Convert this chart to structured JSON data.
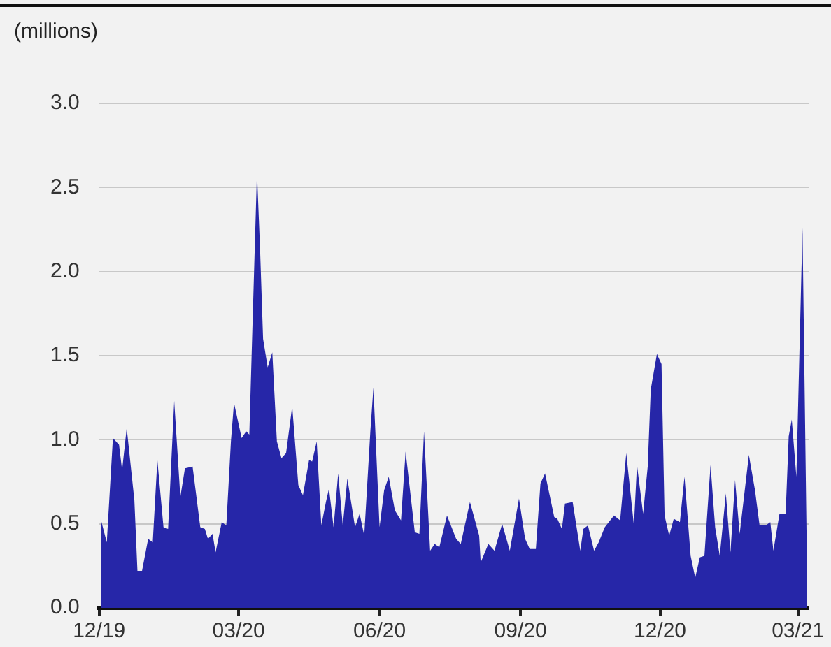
{
  "chart_data": {
    "type": "area",
    "ylabel": "(millions)",
    "x": [
      "2019-12-02",
      "2019-12-06",
      "2019-12-10",
      "2019-12-14",
      "2019-12-16",
      "2019-12-19",
      "2019-12-24",
      "2019-12-26",
      "2019-12-29",
      "2020-01-02",
      "2020-01-05",
      "2020-01-08",
      "2020-01-12",
      "2020-01-15",
      "2020-01-19",
      "2020-01-23",
      "2020-01-26",
      "2020-01-31",
      "2020-02-05",
      "2020-02-08",
      "2020-02-10",
      "2020-02-13",
      "2020-02-15",
      "2020-02-19",
      "2020-02-22",
      "2020-02-25",
      "2020-02-27",
      "2020-03-03",
      "2020-03-06",
      "2020-03-08",
      "2020-03-13",
      "2020-03-15",
      "2020-03-17",
      "2020-03-20",
      "2020-03-23",
      "2020-03-26",
      "2020-03-29",
      "2020-04-01",
      "2020-04-05",
      "2020-04-09",
      "2020-04-12",
      "2020-04-16",
      "2020-04-18",
      "2020-04-21",
      "2020-04-24",
      "2020-04-27",
      "2020-04-29",
      "2020-05-02",
      "2020-05-05",
      "2020-05-08",
      "2020-05-11",
      "2020-05-16",
      "2020-05-19",
      "2020-05-22",
      "2020-05-26",
      "2020-05-28",
      "2020-06-01",
      "2020-06-04",
      "2020-06-07",
      "2020-06-11",
      "2020-06-15",
      "2020-06-18",
      "2020-06-24",
      "2020-06-27",
      "2020-06-30",
      "2020-07-04",
      "2020-07-07",
      "2020-07-10",
      "2020-07-15",
      "2020-07-18",
      "2020-07-21",
      "2020-07-24",
      "2020-07-30",
      "2020-08-05",
      "2020-08-06",
      "2020-08-11",
      "2020-08-15",
      "2020-08-20",
      "2020-08-25",
      "2020-08-31",
      "2020-09-04",
      "2020-09-07",
      "2020-09-11",
      "2020-09-14",
      "2020-09-17",
      "2020-09-23",
      "2020-09-25",
      "2020-09-28",
      "2020-09-30",
      "2020-10-05",
      "2020-10-10",
      "2020-10-12",
      "2020-10-15",
      "2020-10-19",
      "2020-10-22",
      "2020-10-26",
      "2020-11-01",
      "2020-11-05",
      "2020-11-09",
      "2020-11-14",
      "2020-11-16",
      "2020-11-20",
      "2020-11-23",
      "2020-11-25",
      "2020-11-29",
      "2020-12-02",
      "2020-12-04",
      "2020-12-07",
      "2020-12-10",
      "2020-12-14",
      "2020-12-17",
      "2020-12-21",
      "2020-12-24",
      "2020-12-27",
      "2020-12-30",
      "2021-01-03",
      "2021-01-06",
      "2021-01-09",
      "2021-01-13",
      "2021-01-16",
      "2021-01-19",
      "2021-01-22",
      "2021-01-28",
      "2021-02-01",
      "2021-02-04",
      "2021-02-08",
      "2021-02-11",
      "2021-02-13",
      "2021-02-17",
      "2021-02-21",
      "2021-02-23",
      "2021-02-25",
      "2021-02-28",
      "2021-03-04",
      "2021-03-07"
    ],
    "values": [
      0.53,
      0.39,
      1.01,
      0.97,
      0.82,
      1.07,
      0.64,
      0.22,
      0.22,
      0.41,
      0.39,
      0.88,
      0.48,
      0.47,
      1.23,
      0.66,
      0.83,
      0.84,
      0.48,
      0.47,
      0.41,
      0.44,
      0.33,
      0.51,
      0.49,
      0.99,
      1.22,
      1.01,
      1.05,
      1.03,
      2.59,
      2.14,
      1.6,
      1.43,
      1.52,
      0.99,
      0.89,
      0.92,
      1.2,
      0.73,
      0.67,
      0.88,
      0.87,
      0.99,
      0.49,
      0.63,
      0.71,
      0.48,
      0.8,
      0.49,
      0.77,
      0.48,
      0.56,
      0.43,
      1.05,
      1.31,
      0.48,
      0.7,
      0.78,
      0.58,
      0.52,
      0.93,
      0.45,
      0.44,
      1.05,
      0.34,
      0.38,
      0.36,
      0.55,
      0.48,
      0.41,
      0.38,
      0.63,
      0.43,
      0.27,
      0.38,
      0.34,
      0.5,
      0.34,
      0.65,
      0.41,
      0.35,
      0.35,
      0.74,
      0.8,
      0.54,
      0.53,
      0.47,
      0.62,
      0.63,
      0.34,
      0.47,
      0.49,
      0.34,
      0.39,
      0.48,
      0.55,
      0.52,
      0.92,
      0.49,
      0.85,
      0.56,
      0.84,
      1.3,
      1.51,
      1.45,
      0.55,
      0.43,
      0.53,
      0.51,
      0.78,
      0.31,
      0.18,
      0.3,
      0.31,
      0.85,
      0.48,
      0.31,
      0.68,
      0.33,
      0.76,
      0.44,
      0.91,
      0.7,
      0.49,
      0.49,
      0.51,
      0.34,
      0.56,
      0.56,
      1.02,
      1.12,
      0.78,
      2.26,
      0.2
    ],
    "color": "#2626a8",
    "xlim": [
      "2019-12-01",
      "2021-03-08"
    ],
    "xticks": [
      {
        "value": "2019-12-01",
        "label": "12/19"
      },
      {
        "value": "2020-03-01",
        "label": "03/20"
      },
      {
        "value": "2020-06-01",
        "label": "06/20"
      },
      {
        "value": "2020-09-01",
        "label": "09/20"
      },
      {
        "value": "2020-12-01",
        "label": "12/20"
      },
      {
        "value": "2021-03-01",
        "label": "03/21"
      }
    ],
    "ylim": [
      0,
      3
    ],
    "yticks": [
      {
        "value": 0,
        "label": "0.0"
      },
      {
        "value": 0.5,
        "label": "0.5"
      },
      {
        "value": 1,
        "label": "1.0"
      },
      {
        "value": 1.5,
        "label": "1.5"
      },
      {
        "value": 2,
        "label": "2.0"
      },
      {
        "value": 2.5,
        "label": "2.5"
      },
      {
        "value": 3,
        "label": "3.0"
      }
    ],
    "grid": "y"
  }
}
